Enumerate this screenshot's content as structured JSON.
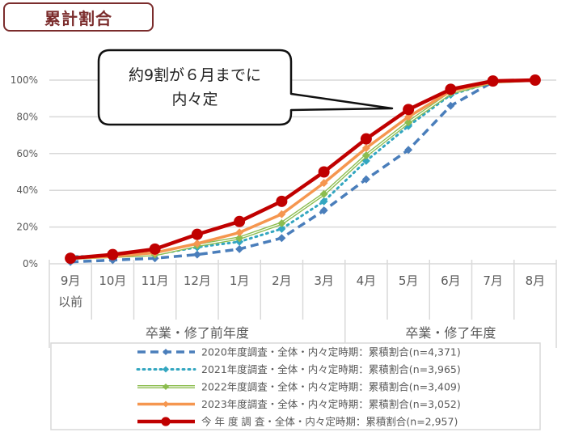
{
  "header": {
    "title": "累計割合"
  },
  "callout": {
    "line1": "約9割が６月までに",
    "line2": "内々定"
  },
  "chart_data": {
    "type": "line",
    "title": "累計割合",
    "xlabel": "",
    "ylabel": "",
    "ylim": [
      0,
      100
    ],
    "y_ticks": [
      "0%",
      "20%",
      "40%",
      "60%",
      "80%",
      "100%"
    ],
    "grid": true,
    "legend_position": "bottom",
    "categories": [
      "9月以前",
      "10月",
      "11月",
      "12月",
      "1月",
      "2月",
      "3月",
      "4月",
      "5月",
      "6月",
      "7月",
      "8月"
    ],
    "category_labels": [
      [
        "9月",
        "以前"
      ],
      [
        "10月"
      ],
      [
        "11月"
      ],
      [
        "12月"
      ],
      [
        "1月"
      ],
      [
        "2月"
      ],
      [
        "3月"
      ],
      [
        "4月"
      ],
      [
        "5月"
      ],
      [
        "6月"
      ],
      [
        "7月"
      ],
      [
        "8月"
      ]
    ],
    "category_groups": [
      {
        "label": "卒業・修了前年度",
        "from": 0,
        "to": 6
      },
      {
        "label": "卒業・修了年度",
        "from": 7,
        "to": 11
      }
    ],
    "series": [
      {
        "name": "2020年度調査・全体・内々定時期：累積割合(n=4,371)",
        "color": "#4a7ebb",
        "style": "dashed",
        "marker": "diamond",
        "values": [
          1,
          2,
          3,
          5,
          8,
          14,
          29,
          46,
          62,
          86,
          99,
          100
        ]
      },
      {
        "name": "2021年度調査・全体・内々定時期：累積割合(n=3,965)",
        "color": "#33a6c0",
        "style": "dotted",
        "marker": "diamond",
        "values": [
          4,
          4,
          5,
          9,
          12,
          19,
          34,
          56,
          75,
          92,
          99,
          100
        ]
      },
      {
        "name": "2022年度調査・全体・内々定時期：累積割合(n=3,409)",
        "color": "#8cbd4f",
        "style": "double",
        "marker": "diamond",
        "values": [
          3,
          4,
          5,
          10,
          14,
          22,
          38,
          59,
          77,
          93,
          99,
          100
        ]
      },
      {
        "name": "2023年度調査・全体・内々定時期：累積割合(n=3,052)",
        "color": "#f5964f",
        "style": "solid",
        "marker": "diamond",
        "values": [
          3,
          4,
          6,
          11,
          17,
          27,
          44,
          63,
          80,
          94,
          99,
          100
        ]
      },
      {
        "name": "今 年 度 調 査・全体・内々定時期：累積割合(n=2,957)",
        "color": "#c00000",
        "style": "solid-thick",
        "marker": "circle",
        "values": [
          3,
          5,
          8,
          16,
          23,
          34,
          50,
          68,
          84,
          95,
          99.5,
          100
        ]
      }
    ],
    "annotations": [
      "約9割が６月までに内々定"
    ]
  }
}
